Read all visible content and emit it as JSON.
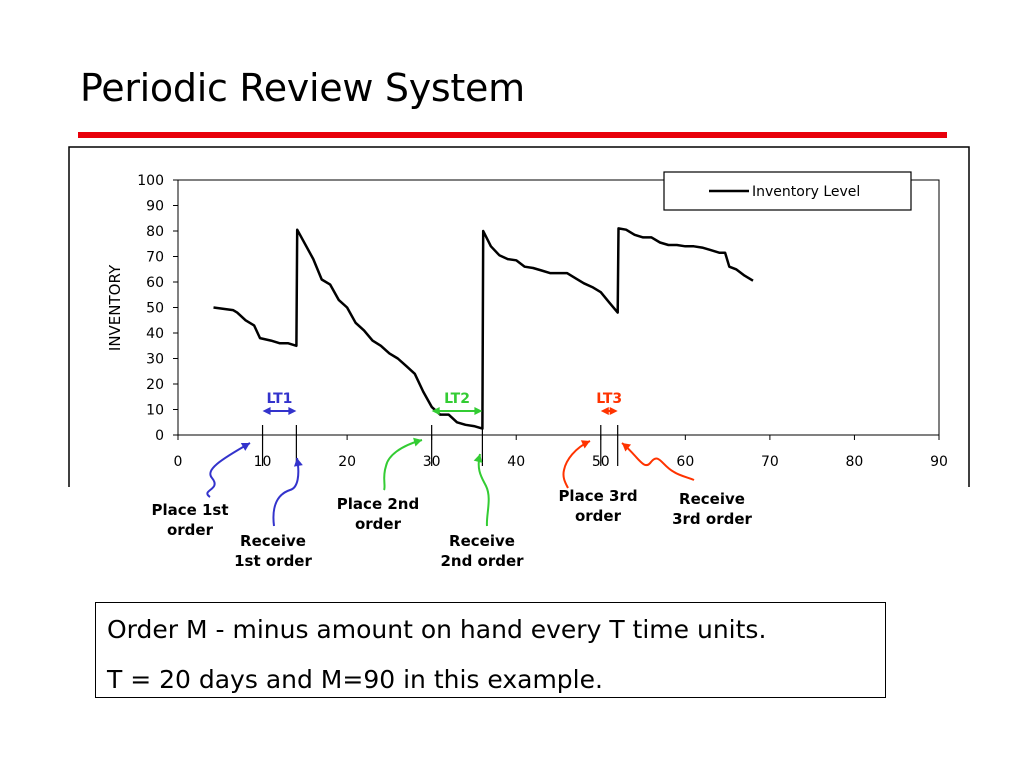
{
  "page": {
    "title": "Periodic Review System",
    "accent_color": "#e8000b",
    "notes": [
      "Order M - minus amount on hand every T time units.",
      "T = 20 days and M=90 in this example."
    ]
  },
  "chart_data": {
    "type": "line",
    "title": "",
    "xlabel": "",
    "ylabel": "INVENTORY",
    "xlim": [
      0,
      90
    ],
    "ylim": [
      0,
      100
    ],
    "x_ticks": [
      0,
      10,
      20,
      30,
      40,
      50,
      60,
      70,
      80,
      90
    ],
    "y_ticks": [
      0,
      10,
      20,
      30,
      40,
      50,
      60,
      70,
      80,
      90,
      100
    ],
    "grid": false,
    "legend": {
      "position": "top-right",
      "entries": [
        "Inventory Level"
      ]
    },
    "series": [
      {
        "name": "Inventory Level",
        "color": "#000000",
        "points": [
          [
            4.2,
            50
          ],
          [
            6.5,
            49
          ],
          [
            7,
            48
          ],
          [
            8,
            45
          ],
          [
            9,
            43
          ],
          [
            9.7,
            38
          ],
          [
            11,
            37
          ],
          [
            12,
            36
          ],
          [
            13,
            36
          ],
          [
            14,
            35
          ],
          [
            14.1,
            80.5
          ],
          [
            16,
            69
          ],
          [
            17,
            61
          ],
          [
            18,
            59
          ],
          [
            19,
            53
          ],
          [
            20,
            50
          ],
          [
            21,
            44
          ],
          [
            22,
            41
          ],
          [
            23,
            37
          ],
          [
            24,
            35
          ],
          [
            25,
            32
          ],
          [
            26,
            30
          ],
          [
            27,
            27
          ],
          [
            28,
            24
          ],
          [
            29,
            17
          ],
          [
            30,
            11
          ],
          [
            31,
            8
          ],
          [
            32,
            8
          ],
          [
            33,
            5
          ],
          [
            34,
            4
          ],
          [
            35,
            3.5
          ],
          [
            36,
            2.5
          ],
          [
            36.1,
            80
          ],
          [
            37,
            74
          ],
          [
            38,
            70.5
          ],
          [
            39,
            69
          ],
          [
            40,
            68.5
          ],
          [
            41,
            66
          ],
          [
            42,
            65.5
          ],
          [
            43,
            64.5
          ],
          [
            44,
            63.5
          ],
          [
            45,
            63.5
          ],
          [
            46,
            63.5
          ],
          [
            47,
            61.5
          ],
          [
            48,
            59.5
          ],
          [
            49,
            58
          ],
          [
            50,
            56
          ],
          [
            51,
            52
          ],
          [
            52,
            48
          ],
          [
            52.1,
            81
          ],
          [
            53,
            80.5
          ],
          [
            54,
            78.5
          ],
          [
            55,
            77.5
          ],
          [
            56,
            77.5
          ],
          [
            57,
            75.5
          ],
          [
            58,
            74.5
          ],
          [
            59,
            74.5
          ],
          [
            60,
            74
          ],
          [
            61,
            74
          ],
          [
            62,
            73.5
          ],
          [
            63,
            72.5
          ],
          [
            64,
            71.5
          ],
          [
            64.7,
            71.5
          ],
          [
            65.2,
            66
          ],
          [
            66,
            65
          ],
          [
            67,
            62.5
          ],
          [
            68,
            60.5
          ]
        ]
      }
    ],
    "lead_times": [
      {
        "label": "LT1",
        "from": 10,
        "to": 14,
        "color": "#3333cc"
      },
      {
        "label": "LT2",
        "from": 30,
        "to": 36,
        "color": "#33cc33"
      },
      {
        "label": "LT3",
        "from": 50,
        "to": 52,
        "color": "#ff3300"
      }
    ],
    "annotations": [
      {
        "text": [
          "Place 1st",
          "order"
        ],
        "x": 9,
        "color": "#3333cc",
        "side": "below-left"
      },
      {
        "text": [
          "Receive",
          "1st order"
        ],
        "x": 14,
        "color": "#3333cc",
        "side": "below"
      },
      {
        "text": [
          "Place 2nd",
          "order"
        ],
        "x": 29,
        "color": "#33cc33",
        "side": "below-left"
      },
      {
        "text": [
          "Receive",
          "2nd order"
        ],
        "x": 36,
        "color": "#33cc33",
        "side": "below"
      },
      {
        "text": [
          "Place 3rd",
          "order"
        ],
        "x": 49,
        "color": "#ff3300",
        "side": "below-left"
      },
      {
        "text": [
          "Receive",
          "3rd order"
        ],
        "x": 53,
        "color": "#ff3300",
        "side": "below-right"
      }
    ]
  }
}
